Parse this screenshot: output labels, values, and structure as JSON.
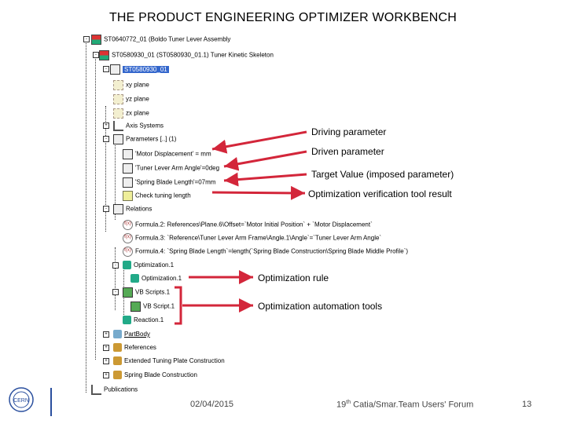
{
  "title": "THE PRODUCT ENGINEERING OPTIMIZER WORKBENCH",
  "tree": {
    "nodes": [
      {
        "label": "ST0640772_01 (Boldo Tuner Lever Assembly",
        "icon": "product-icon"
      },
      {
        "label": "ST0580930_01 (ST0580930_01.1) Tuner Kinetic Skeleton",
        "icon": "product-icon"
      },
      {
        "label": "ST0580930_01",
        "icon": "part-icon"
      },
      {
        "label": "xy plane",
        "icon": "plane-icon"
      },
      {
        "label": "yz plane",
        "icon": "plane-icon"
      },
      {
        "label": "zx plane",
        "icon": "plane-icon"
      },
      {
        "label": "Axis Systems",
        "icon": "axis-icon"
      },
      {
        "label": "Parameters [..] (1)",
        "icon": "parameters-icon"
      },
      {
        "label": "'Motor Displacement' = mm",
        "icon": "parameter-icon"
      },
      {
        "label": "'Tuner Lever Arm Angle'=0deg",
        "icon": "parameter-icon"
      },
      {
        "label": "'Spring Blade Length'=07mm",
        "icon": "parameter-icon"
      },
      {
        "label": "Check tuning length",
        "icon": "check-icon"
      },
      {
        "label": "Relations",
        "icon": "relations-icon"
      },
      {
        "label": "Formula.2: References\\Plane.6\\Offset=`Motor Initial Position` + `Motor Displacement`",
        "icon": "formula-icon"
      },
      {
        "label": "Formula.3: `Reference\\Tuner Lever Arm Frame\\Angle.1\\Angle`=`Tuner Lever Arm Angle`",
        "icon": "formula-icon"
      },
      {
        "label": "Formula.4: `Spring Blade Length`=length(`Spring Blade Construction\\Spring Blade Middle Profile`)",
        "icon": "formula-icon"
      },
      {
        "label": "Optimization.1",
        "icon": "optimization-icon"
      },
      {
        "label": "Optimization.1",
        "icon": "optimization-rule-icon"
      },
      {
        "label": "VB Scripts.1",
        "icon": "vb-scripts-icon"
      },
      {
        "label": "VB Script.1",
        "icon": "vb-script-icon"
      },
      {
        "label": "Reaction.1",
        "icon": "reaction-icon"
      },
      {
        "label": "PartBody",
        "icon": "body-icon"
      },
      {
        "label": "References",
        "icon": "set-icon"
      },
      {
        "label": "Extended Tuning Plate Construction",
        "icon": "set-icon"
      },
      {
        "label": "Spring Blade Construction",
        "icon": "set-icon"
      },
      {
        "label": "Publications",
        "icon": "publications-icon"
      }
    ]
  },
  "annotations": {
    "driving": "Driving parameter",
    "driven": "Driven parameter",
    "target": "Target Value (imposed parameter)",
    "verification": "Optimization verification tool result",
    "rule": "Optimization rule",
    "automation": "Optimization automation tools"
  },
  "colors": {
    "arrow": "#d3263a",
    "selected": "#3366cc"
  },
  "footer": {
    "date": "02/04/2015",
    "forum_prefix": "19",
    "forum_sup": "th",
    "forum_rest": " Catia/Smar.Team Users' Forum",
    "page": "13"
  },
  "logo": {
    "text": "CERN"
  }
}
